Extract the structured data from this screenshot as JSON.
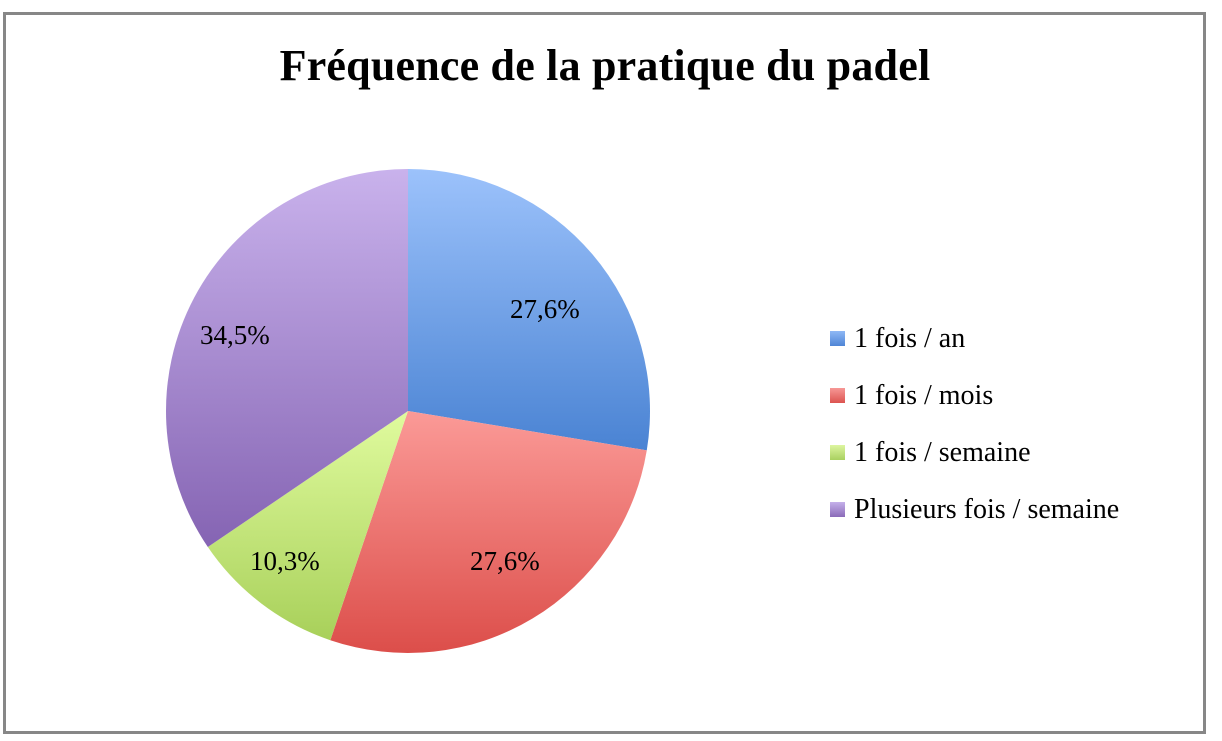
{
  "chart_data": {
    "type": "pie",
    "title": "Fréquence de la pratique du padel",
    "categories": [
      "1 fois / an",
      "1 fois / mois",
      "1 fois / semaine",
      "Plusieurs fois / semaine"
    ],
    "values": [
      27.6,
      27.6,
      10.3,
      34.5
    ],
    "labels": [
      "27,6%",
      "27,6%",
      "10,3%",
      "34,5%"
    ],
    "colors": [
      "#6f9fe3",
      "#ee7d7d",
      "#c8e68a",
      "#a98bd1"
    ],
    "legend_position": "right",
    "start_angle": "12 o'clock, clockwise"
  },
  "legend": {
    "items": [
      {
        "label": "1 fois / an",
        "color": "#5b8fdc"
      },
      {
        "label": "1 fois / mois",
        "color": "#e86a6a"
      },
      {
        "label": "1 fois / semaine",
        "color": "#bfe07a"
      },
      {
        "label": "Plusieurs fois / semaine",
        "color": "#9f85cc"
      }
    ]
  }
}
